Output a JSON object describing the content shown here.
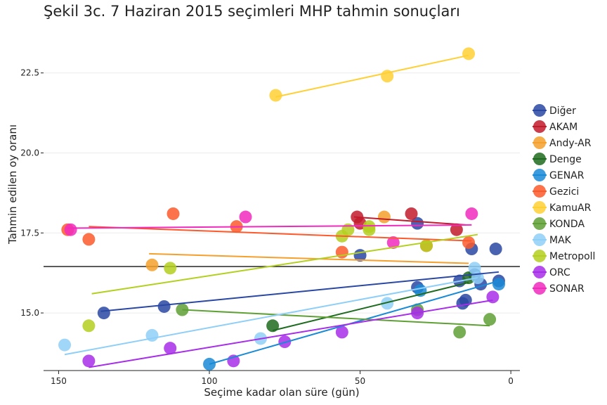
{
  "chart_data": {
    "type": "scatter",
    "title": "Şekil 3c. 7 Haziran 2015 seçimleri MHP tahmin sonuçları",
    "xlabel": "Seçime kadar olan süre (gün)",
    "ylabel": "Tahmin edilen oy oranı",
    "xlim": [
      155,
      -3
    ],
    "ylim": [
      13.2,
      23.9
    ],
    "x_ticks": [
      150,
      100,
      50,
      0
    ],
    "y_ticks": [
      15.0,
      17.5,
      20.0,
      22.5
    ],
    "x_tick_labels": [
      "150",
      "100",
      "50",
      "0"
    ],
    "y_tick_labels": [
      "15.0",
      "17.5",
      "20.0",
      "22.5"
    ],
    "hline": 16.45,
    "legend_position": "right",
    "series": [
      {
        "name": "Diğer",
        "color": "#2a48a3",
        "points": [
          [
            135,
            15.0
          ],
          [
            115,
            15.2
          ],
          [
            50,
            16.8
          ],
          [
            31,
            15.8
          ],
          [
            31,
            17.8
          ],
          [
            17,
            16.0
          ],
          [
            16,
            15.3
          ],
          [
            15,
            15.4
          ],
          [
            13,
            17.0
          ],
          [
            12,
            16.2
          ],
          [
            10,
            15.9
          ],
          [
            5,
            17.0
          ],
          [
            4,
            16.0
          ]
        ],
        "fit": [
          [
            136,
            15.05
          ],
          [
            4,
            16.28
          ]
        ]
      },
      {
        "name": "AKAM",
        "color": "#c21b2b",
        "points": [
          [
            51,
            18.0
          ],
          [
            50,
            17.8
          ],
          [
            33,
            18.1
          ],
          [
            18,
            17.6
          ]
        ],
        "fit": [
          [
            52,
            18.0
          ],
          [
            15,
            17.75
          ]
        ]
      },
      {
        "name": "Andy-AR",
        "color": "#f5a02c",
        "points": [
          [
            119,
            16.5
          ],
          [
            42,
            18.0
          ]
        ],
        "fit": [
          [
            120,
            16.85
          ],
          [
            14,
            16.55
          ]
        ]
      },
      {
        "name": "Denge",
        "color": "#1e6b1f",
        "points": [
          [
            79,
            14.6
          ],
          [
            14,
            16.1
          ]
        ],
        "fit": [
          [
            79,
            14.45
          ],
          [
            14,
            15.95
          ]
        ]
      },
      {
        "name": "GENAR",
        "color": "#1a8ad6",
        "points": [
          [
            100,
            13.4
          ],
          [
            30,
            15.7
          ],
          [
            4,
            15.9
          ]
        ],
        "fit": [
          [
            100,
            13.4
          ],
          [
            4,
            16.0
          ]
        ]
      },
      {
        "name": "Gezici",
        "color": "#fb5a2c",
        "points": [
          [
            147,
            17.6
          ],
          [
            140,
            17.3
          ],
          [
            112,
            18.1
          ],
          [
            91,
            17.7
          ],
          [
            56,
            16.9
          ],
          [
            28,
            17.1
          ],
          [
            14,
            17.2
          ]
        ],
        "fit": [
          [
            140,
            17.7
          ],
          [
            13,
            17.25
          ]
        ]
      },
      {
        "name": "KamuAR",
        "color": "#ffd035",
        "points": [
          [
            78,
            21.8
          ],
          [
            41,
            22.4
          ],
          [
            14,
            23.1
          ]
        ],
        "fit": [
          [
            78,
            21.75
          ],
          [
            14,
            23.05
          ]
        ]
      },
      {
        "name": "KONDA",
        "color": "#5fa035",
        "points": [
          [
            109,
            15.1
          ],
          [
            31,
            15.1
          ],
          [
            17,
            14.4
          ],
          [
            7,
            14.8
          ]
        ],
        "fit": [
          [
            109,
            15.1
          ],
          [
            7,
            14.6
          ]
        ]
      },
      {
        "name": "MAK",
        "color": "#8fcff7",
        "points": [
          [
            148,
            14.0
          ],
          [
            119,
            14.3
          ],
          [
            83,
            14.2
          ],
          [
            41,
            15.3
          ],
          [
            12,
            16.4
          ],
          [
            11,
            16.1
          ]
        ],
        "fit": [
          [
            148,
            13.7
          ],
          [
            11,
            16.1
          ]
        ]
      },
      {
        "name": "Metropoll",
        "color": "#b4cf20",
        "points": [
          [
            140,
            14.6
          ],
          [
            113,
            16.4
          ],
          [
            56,
            17.4
          ],
          [
            54,
            17.6
          ],
          [
            47,
            17.6
          ],
          [
            47,
            17.7
          ],
          [
            28,
            17.1
          ]
        ],
        "fit": [
          [
            139,
            15.6
          ],
          [
            11,
            17.45
          ]
        ]
      },
      {
        "name": "ORC",
        "color": "#a72ee8",
        "points": [
          [
            140,
            13.5
          ],
          [
            113,
            13.9
          ],
          [
            92,
            13.5
          ],
          [
            75,
            14.1
          ],
          [
            56,
            14.4
          ],
          [
            31,
            15.0
          ],
          [
            6,
            15.5
          ]
        ],
        "fit": [
          [
            140,
            13.3
          ],
          [
            6,
            15.4
          ]
        ]
      },
      {
        "name": "SONAR",
        "color": "#f12bbd",
        "points": [
          [
            146,
            17.6
          ],
          [
            88,
            18.0
          ],
          [
            39,
            17.2
          ],
          [
            13,
            18.1
          ]
        ],
        "fit": [
          [
            147,
            17.65
          ],
          [
            13,
            17.75
          ]
        ]
      }
    ]
  }
}
